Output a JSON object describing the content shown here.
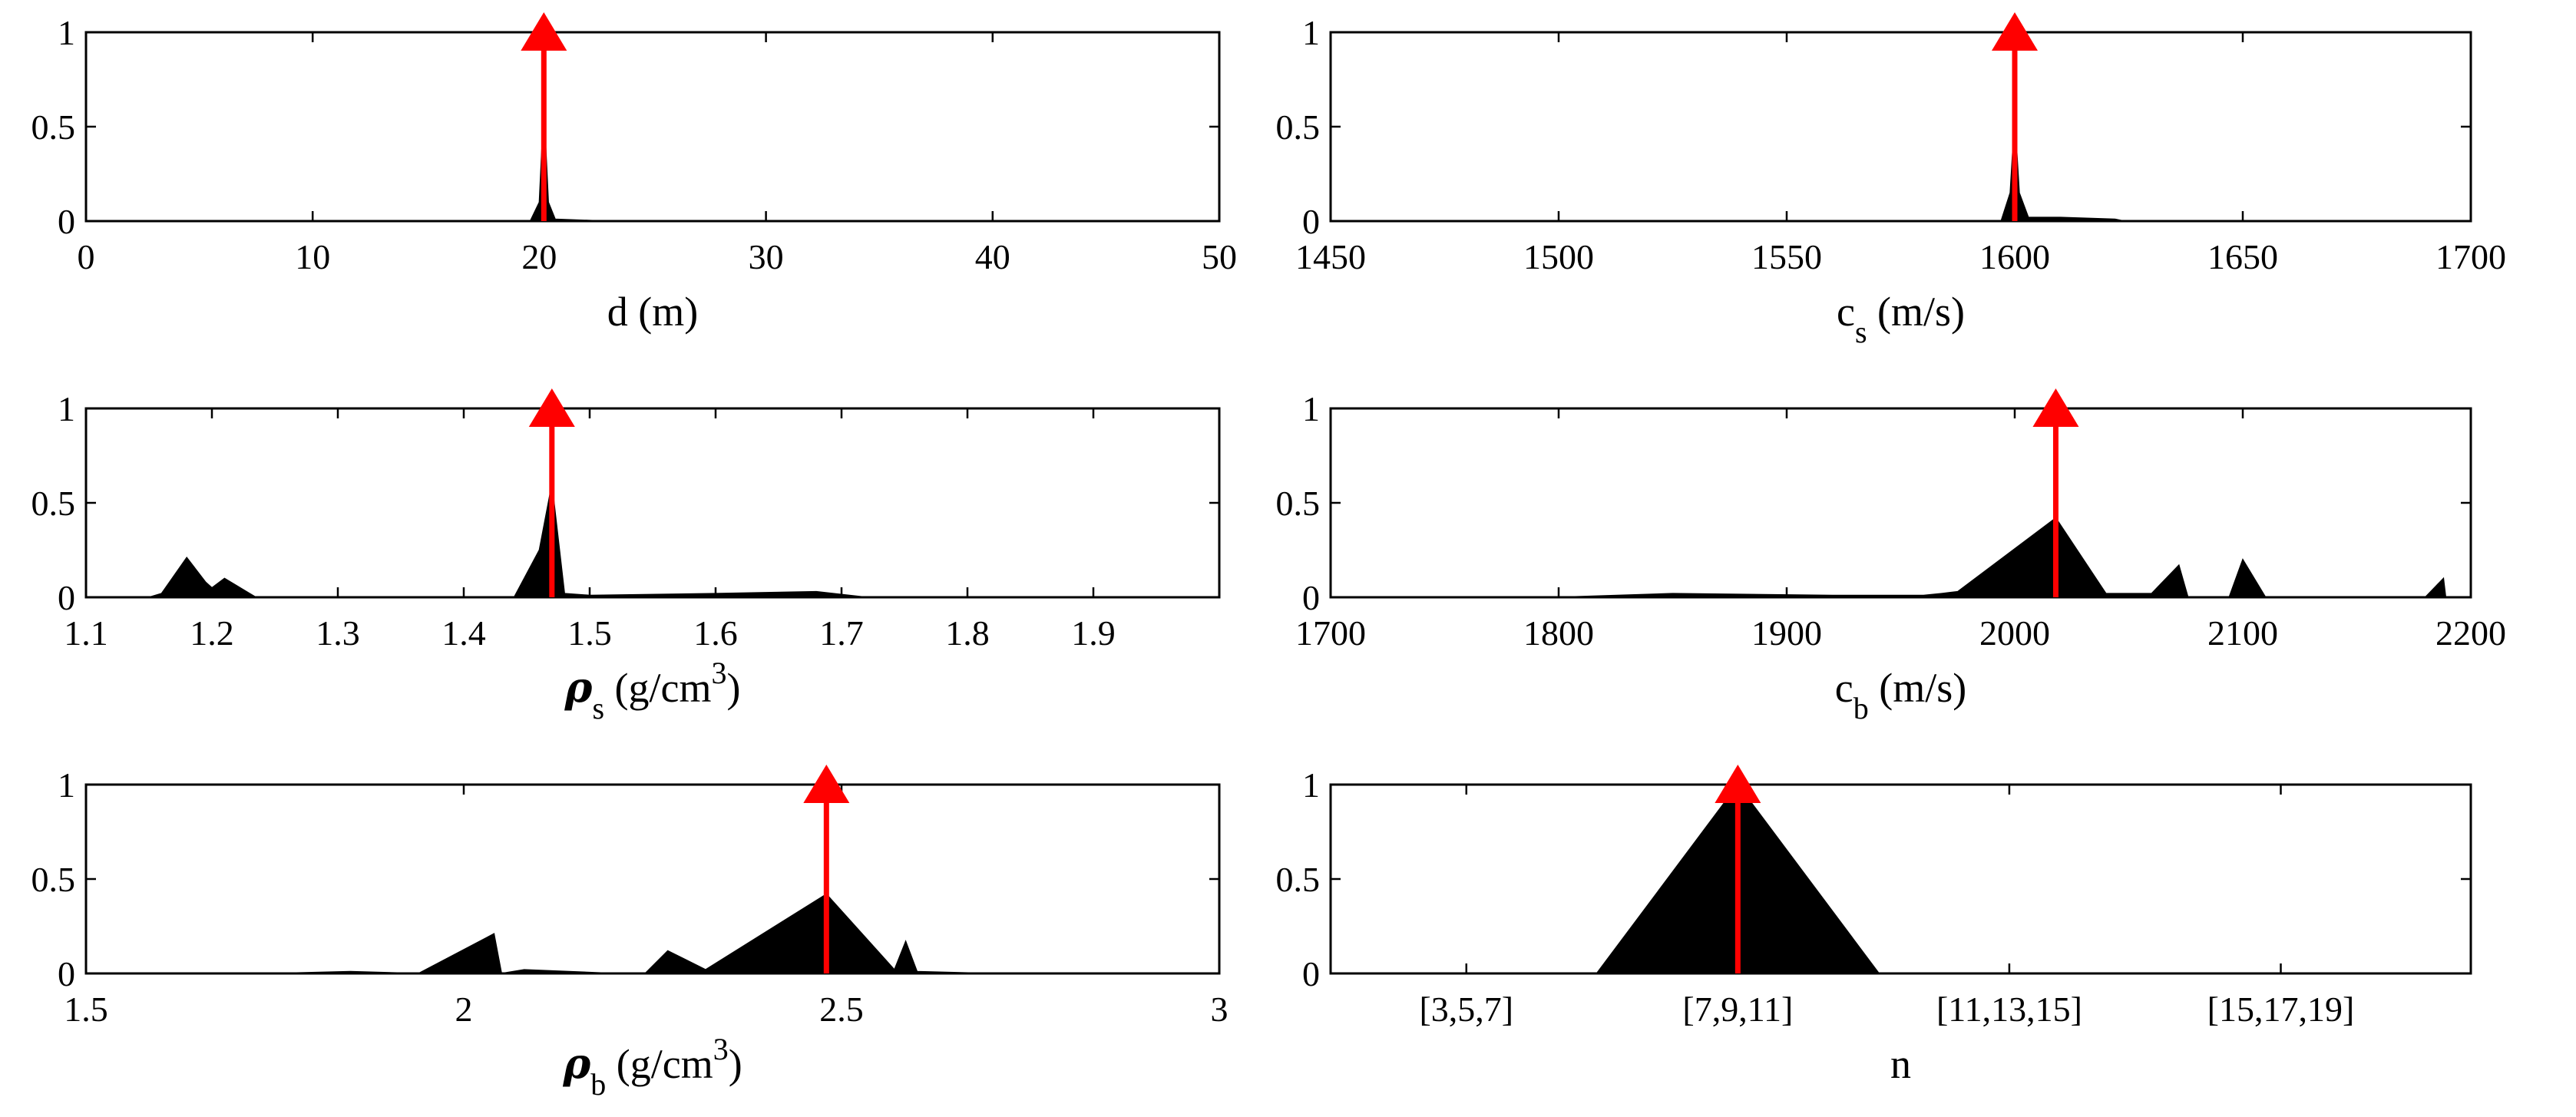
{
  "chart_data": [
    {
      "type": "area",
      "xlabel": "d (m)",
      "xlabel_parts": {
        "main": "d",
        "sub": "",
        "sup": "",
        "unit": " (m)"
      },
      "xlim": [
        0,
        50
      ],
      "ylim": [
        0,
        1
      ],
      "xticks": [
        0,
        10,
        20,
        30,
        40,
        50
      ],
      "xtick_labels": [
        "0",
        "10",
        "20",
        "30",
        "40",
        "50"
      ],
      "yticks": [
        0,
        0.5,
        1
      ],
      "ytick_labels": [
        "0",
        "0.5",
        "1"
      ],
      "grid": false,
      "x": [
        0,
        19.6,
        20.0,
        20.2,
        20.4,
        20.7,
        23,
        50
      ],
      "y": [
        0,
        0,
        0.1,
        0.6,
        0.1,
        0.01,
        0,
        0
      ],
      "true_value": 20.2
    },
    {
      "type": "area",
      "xlabel": "c_s (m/s)",
      "xlabel_parts": {
        "main": "c",
        "sub": "s",
        "sup": "",
        "unit": " (m/s)"
      },
      "xlim": [
        1450,
        1700
      ],
      "ylim": [
        0,
        1
      ],
      "xticks": [
        1450,
        1500,
        1550,
        1600,
        1650,
        1700
      ],
      "xtick_labels": [
        "1450",
        "1500",
        "1550",
        "1600",
        "1650",
        "1700"
      ],
      "yticks": [
        0,
        0.5,
        1
      ],
      "ytick_labels": [
        "0",
        "0.5",
        "1"
      ],
      "grid": false,
      "x": [
        1450,
        1597,
        1599,
        1600,
        1601,
        1603,
        1610,
        1622,
        1624,
        1700
      ],
      "y": [
        0,
        0,
        0.15,
        0.55,
        0.15,
        0.02,
        0.02,
        0.01,
        0,
        0
      ],
      "true_value": 1600
    },
    {
      "type": "area",
      "xlabel": "ρ_s (g/cm³)",
      "xlabel_parts": {
        "main": "ρ",
        "sub": "s",
        "sup": "3",
        "unit": " (g/cm"
      },
      "xlim": [
        1.1,
        2.0
      ],
      "ylim": [
        0,
        1
      ],
      "xticks": [
        1.1,
        1.2,
        1.3,
        1.4,
        1.5,
        1.6,
        1.7,
        1.8,
        1.9
      ],
      "xtick_labels": [
        "1.1",
        "1.2",
        "1.3",
        "1.4",
        "1.5",
        "1.6",
        "1.7",
        "1.8",
        "1.9"
      ],
      "yticks": [
        0,
        0.5,
        1
      ],
      "ytick_labels": [
        "0",
        "0.5",
        "1"
      ],
      "grid": false,
      "x": [
        1.1,
        1.15,
        1.16,
        1.18,
        1.195,
        1.2,
        1.21,
        1.23,
        1.235,
        1.44,
        1.46,
        1.47,
        1.48,
        1.5,
        1.6,
        1.68,
        1.72,
        2.0
      ],
      "y": [
        0,
        0,
        0.02,
        0.21,
        0.08,
        0.05,
        0.1,
        0.02,
        0,
        0,
        0.25,
        0.6,
        0.02,
        0.01,
        0.02,
        0.03,
        0,
        0
      ],
      "true_value": 1.47
    },
    {
      "type": "area",
      "xlabel": "c_b (m/s)",
      "xlabel_parts": {
        "main": "c",
        "sub": "b",
        "sup": "",
        "unit": " (m/s)"
      },
      "xlim": [
        1700,
        2200
      ],
      "ylim": [
        0,
        1
      ],
      "xticks": [
        1700,
        1800,
        1900,
        2000,
        2100,
        2200
      ],
      "xtick_labels": [
        "1700",
        "1800",
        "1900",
        "2000",
        "2100",
        "2200"
      ],
      "yticks": [
        0,
        0.5,
        1
      ],
      "ytick_labels": [
        "0",
        "0.5",
        "1"
      ],
      "grid": false,
      "x": [
        1700,
        1800,
        1850,
        1920,
        1960,
        1968,
        1975,
        2018,
        2040,
        2060,
        2072,
        2076,
        2094,
        2100,
        2110,
        2180,
        2188,
        2189,
        2200
      ],
      "y": [
        0,
        0,
        0.02,
        0.01,
        0.01,
        0.02,
        0.03,
        0.42,
        0.02,
        0.02,
        0.17,
        0,
        0,
        0.2,
        0,
        0,
        0.1,
        0,
        0
      ],
      "true_value": 2018
    },
    {
      "type": "area",
      "xlabel": "ρ_b (g/cm³)",
      "xlabel_parts": {
        "main": "ρ",
        "sub": "b",
        "sup": "3",
        "unit": " (g/cm"
      },
      "xlim": [
        1.5,
        3.0
      ],
      "ylim": [
        0,
        1
      ],
      "xticks": [
        1.5,
        2,
        2.5,
        3
      ],
      "xtick_labels": [
        "1.5",
        "2",
        "2.5",
        "3"
      ],
      "yticks": [
        0,
        0.5,
        1
      ],
      "ytick_labels": [
        "0",
        "0.5",
        "1"
      ],
      "grid": false,
      "x": [
        1.5,
        1.75,
        1.85,
        1.94,
        2.04,
        2.05,
        2.08,
        2.2,
        2.24,
        2.27,
        2.32,
        2.48,
        2.57,
        2.585,
        2.6,
        2.7,
        3.0
      ],
      "y": [
        0,
        0,
        0.01,
        0,
        0.21,
        0,
        0.02,
        0,
        0,
        0.12,
        0.02,
        0.42,
        0.02,
        0.17,
        0.01,
        0,
        0
      ],
      "true_value": 2.48
    },
    {
      "type": "area",
      "xlabel": "n",
      "xlabel_parts": {
        "main": "n",
        "sub": "",
        "sup": "",
        "unit": ""
      },
      "xlim": [
        0,
        4.2
      ],
      "ylim": [
        0,
        1
      ],
      "xticks": [
        0.5,
        1.5,
        2.5,
        3.5
      ],
      "xtick_labels": [
        "[3,5,7]",
        "[7,9,11]",
        "[11,13,15]",
        "[15,17,19]"
      ],
      "yticks": [
        0,
        0.5,
        1
      ],
      "ytick_labels": [
        "0",
        "0.5",
        "1"
      ],
      "grid": false,
      "x": [
        0,
        0.98,
        1.5,
        2.02,
        4.2
      ],
      "y": [
        0,
        0,
        1,
        0,
        0
      ],
      "true_value": 1.5
    }
  ]
}
